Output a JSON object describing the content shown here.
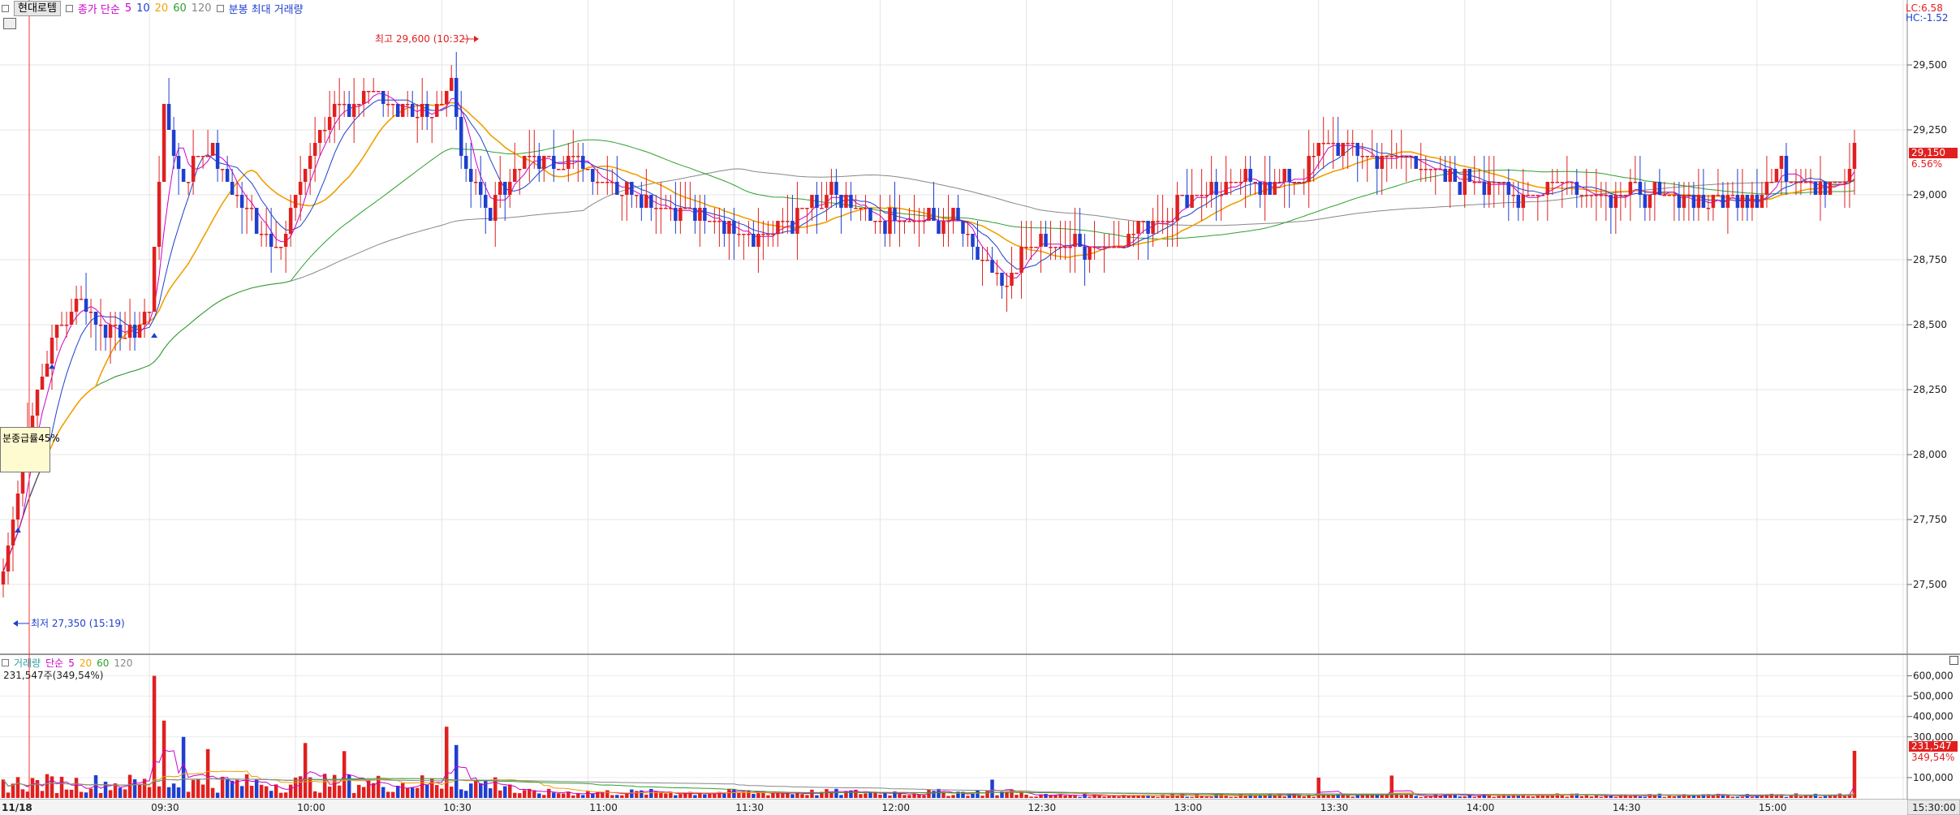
{
  "header": {
    "stock_name": "현대로템",
    "ma_label": "종가 단순",
    "ma_periods": [
      "5",
      "10",
      "20",
      "60",
      "120"
    ],
    "ma_colors": [
      "#cc00cc",
      "#1f3fcf",
      "#f0a000",
      "#2ea02e",
      "#888888"
    ],
    "volume_label": "분봉 최대 거래량"
  },
  "right_info": {
    "lc": "LC:6.58",
    "hc": "HC:-1.52"
  },
  "price_axis": {
    "ticks": [
      "29,500",
      "29,250",
      "29,000",
      "28,750",
      "28,500",
      "28,250",
      "28,000",
      "27,750",
      "27,500"
    ],
    "current_price": "29,150",
    "current_change": "6.56%"
  },
  "annotations": {
    "high": "최고 29,600 (10:32)",
    "low": "최저 27,350 (15:19)",
    "tooltip": "분종급률45%"
  },
  "volume_panel": {
    "legend_label": "거래량",
    "ma_label": "단순",
    "ma_periods": [
      "5",
      "20",
      "60",
      "120"
    ],
    "current_value": "231,547주(349,54%)",
    "axis_ticks": [
      "600,000",
      "500,000",
      "400,000",
      "300,000",
      "100,000"
    ],
    "current_volume": "231,547",
    "current_volume_pct": "349,54%"
  },
  "time_axis": {
    "labels": [
      "11/18",
      "09:30",
      "10:00",
      "10:30",
      "11:00",
      "11:30",
      "12:00",
      "12:30",
      "13:00",
      "13:30",
      "14:00",
      "14:30",
      "15:00",
      "15:30:00"
    ]
  },
  "chart_data": {
    "type": "candlestick",
    "price_range": [
      27250,
      29750
    ],
    "volume_range": [
      0,
      650000
    ],
    "time_range": [
      "09:00",
      "15:30"
    ],
    "price_ticks": [
      27500,
      27750,
      28000,
      28250,
      28500,
      28750,
      29000,
      29250,
      29500
    ],
    "volume_ticks": [
      100000,
      300000,
      400000,
      500000,
      600000
    ],
    "high": {
      "value": 29600,
      "time": "10:32"
    },
    "low": {
      "value": 27350,
      "time": "15:19"
    },
    "last_close": 29150,
    "last_volume": 231547,
    "price_anchors": [
      [
        "09:00",
        27550
      ],
      [
        "09:05",
        28100
      ],
      [
        "09:10",
        28450
      ],
      [
        "09:15",
        28600
      ],
      [
        "09:20",
        28500
      ],
      [
        "09:25",
        28450
      ],
      [
        "09:30",
        28550
      ],
      [
        "09:33",
        29300
      ],
      [
        "09:37",
        29050
      ],
      [
        "09:42",
        29200
      ],
      [
        "09:47",
        29000
      ],
      [
        "09:52",
        28900
      ],
      [
        "09:57",
        28800
      ],
      [
        "10:02",
        29100
      ],
      [
        "10:08",
        29350
      ],
      [
        "10:15",
        29350
      ],
      [
        "10:22",
        29350
      ],
      [
        "10:28",
        29300
      ],
      [
        "10:32",
        29450
      ],
      [
        "10:35",
        29050
      ],
      [
        "10:40",
        28950
      ],
      [
        "10:45",
        29100
      ],
      [
        "10:52",
        29150
      ],
      [
        "11:00",
        29100
      ],
      [
        "11:10",
        29000
      ],
      [
        "11:18",
        28950
      ],
      [
        "11:25",
        28900
      ],
      [
        "11:35",
        28850
      ],
      [
        "11:42",
        28900
      ],
      [
        "11:50",
        29000
      ],
      [
        "11:58",
        28900
      ],
      [
        "12:05",
        28900
      ],
      [
        "12:15",
        28900
      ],
      [
        "12:22",
        28750
      ],
      [
        "12:25",
        28650
      ],
      [
        "12:30",
        28800
      ],
      [
        "12:40",
        28800
      ],
      [
        "12:48",
        28800
      ],
      [
        "12:55",
        28900
      ],
      [
        "13:05",
        29000
      ],
      [
        "13:15",
        29050
      ],
      [
        "13:25",
        29050
      ],
      [
        "13:32",
        29200
      ],
      [
        "13:40",
        29150
      ],
      [
        "13:50",
        29150
      ],
      [
        "13:55",
        29050
      ],
      [
        "14:05",
        29050
      ],
      [
        "14:10",
        29000
      ],
      [
        "14:20",
        29050
      ],
      [
        "14:30",
        29000
      ],
      [
        "14:40",
        29000
      ],
      [
        "14:50",
        28980
      ],
      [
        "15:00",
        29000
      ],
      [
        "15:05",
        29100
      ],
      [
        "15:10",
        29050
      ],
      [
        "15:18",
        29050
      ],
      [
        "15:20",
        29150
      ]
    ],
    "volume_spikes": [
      [
        "09:31",
        600000
      ],
      [
        "09:33",
        380000
      ],
      [
        "09:37",
        300000
      ],
      [
        "09:42",
        240000
      ],
      [
        "10:02",
        270000
      ],
      [
        "10:10",
        230000
      ],
      [
        "10:31",
        350000
      ],
      [
        "10:33",
        260000
      ],
      [
        "12:23",
        90000
      ],
      [
        "13:30",
        100000
      ],
      [
        "13:45",
        110000
      ],
      [
        "15:20",
        231547
      ]
    ]
  }
}
